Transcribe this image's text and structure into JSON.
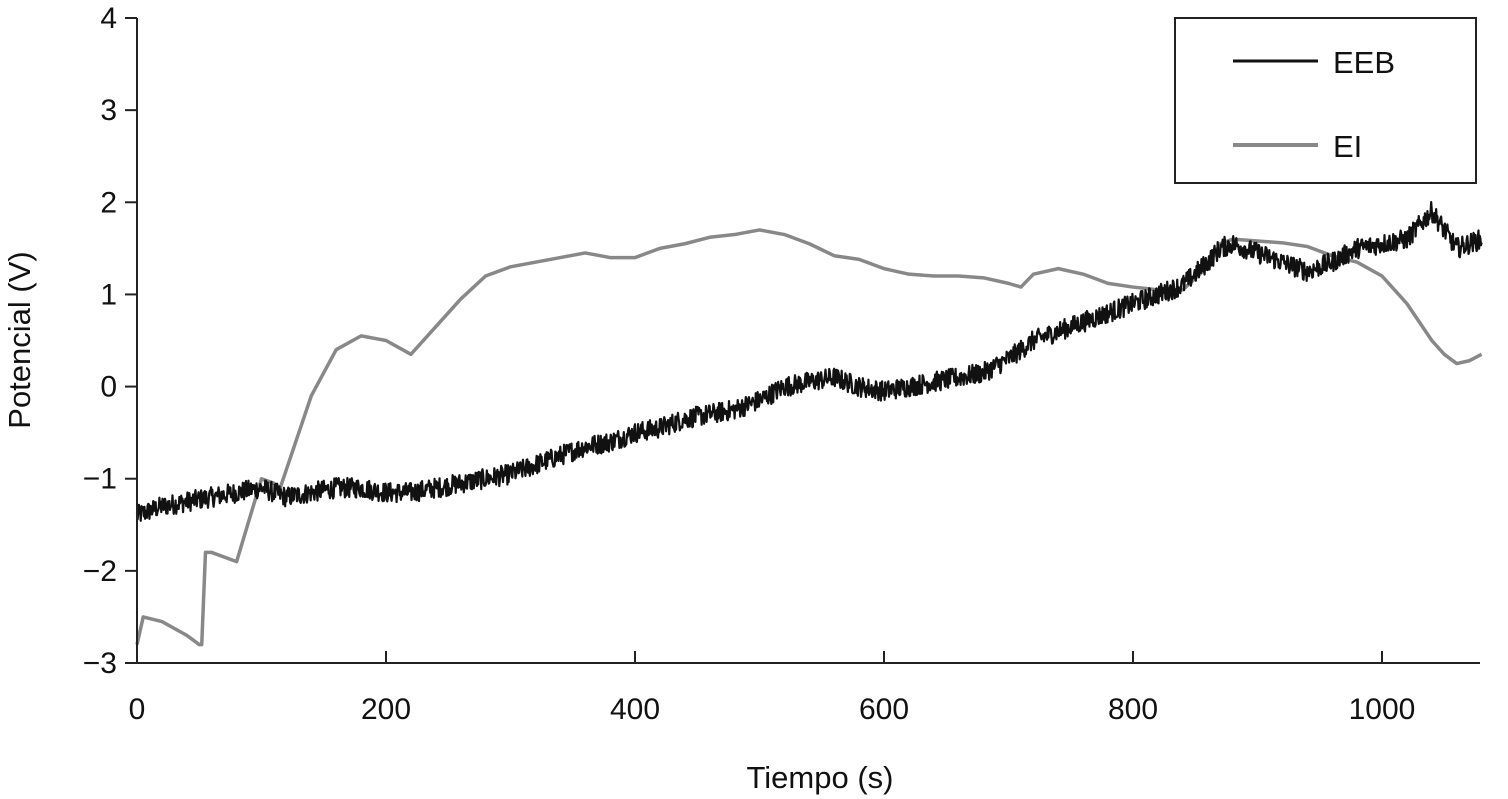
{
  "chart_data": {
    "type": "line",
    "title": "",
    "xlabel": "Tiempo (s)",
    "ylabel": "Potencial (V)",
    "xlim": [
      0,
      1100
    ],
    "ylim": [
      -3,
      4
    ],
    "xticks": [
      0,
      200,
      400,
      600,
      800,
      1000
    ],
    "yticks": [
      -3,
      -2,
      -1,
      0,
      1,
      2,
      3,
      4
    ],
    "xtick_labels": [
      "0",
      "200",
      "400",
      "600",
      "800",
      "1000"
    ],
    "ytick_labels": [
      "−3",
      "−2",
      "−1",
      "0",
      "1",
      "2",
      "3",
      "4"
    ],
    "grid": false,
    "legend_position": "top-right",
    "series": [
      {
        "name": "EEB",
        "color": "#111111",
        "noisy": true,
        "x": [
          0,
          20,
          40,
          60,
          80,
          100,
          120,
          140,
          160,
          180,
          200,
          220,
          240,
          260,
          280,
          300,
          320,
          340,
          360,
          380,
          400,
          420,
          440,
          460,
          480,
          500,
          520,
          540,
          560,
          580,
          600,
          620,
          640,
          660,
          680,
          700,
          720,
          740,
          760,
          780,
          800,
          820,
          840,
          860,
          870,
          880,
          900,
          920,
          940,
          960,
          980,
          1000,
          1020,
          1040,
          1060,
          1080
        ],
        "y": [
          -1.4,
          -1.3,
          -1.25,
          -1.2,
          -1.15,
          -1.1,
          -1.2,
          -1.15,
          -1.1,
          -1.1,
          -1.15,
          -1.15,
          -1.1,
          -1.05,
          -1.0,
          -0.95,
          -0.85,
          -0.75,
          -0.65,
          -0.6,
          -0.5,
          -0.45,
          -0.35,
          -0.3,
          -0.25,
          -0.15,
          0.0,
          0.05,
          0.1,
          0.0,
          -0.05,
          0.0,
          0.05,
          0.1,
          0.15,
          0.3,
          0.5,
          0.6,
          0.7,
          0.8,
          0.9,
          1.0,
          1.1,
          1.35,
          1.5,
          1.55,
          1.45,
          1.35,
          1.25,
          1.35,
          1.5,
          1.55,
          1.6,
          1.9,
          1.5,
          1.6
        ]
      },
      {
        "name": "EI",
        "color": "#888888",
        "noisy": false,
        "x": [
          0,
          5,
          20,
          40,
          50,
          52,
          55,
          60,
          80,
          100,
          110,
          115,
          120,
          140,
          160,
          180,
          200,
          220,
          240,
          260,
          280,
          300,
          320,
          340,
          360,
          380,
          400,
          420,
          440,
          460,
          480,
          500,
          520,
          540,
          560,
          580,
          600,
          620,
          640,
          660,
          680,
          700,
          710,
          720,
          740,
          760,
          780,
          800,
          820,
          840,
          860,
          870,
          880,
          900,
          920,
          940,
          960,
          980,
          1000,
          1020,
          1040,
          1050,
          1060,
          1070,
          1080
        ],
        "y": [
          -2.8,
          -2.5,
          -2.55,
          -2.7,
          -2.8,
          -2.8,
          -1.8,
          -1.8,
          -1.9,
          -1.0,
          -1.05,
          -1.1,
          -0.9,
          -0.1,
          0.4,
          0.55,
          0.5,
          0.35,
          0.65,
          0.95,
          1.2,
          1.3,
          1.35,
          1.4,
          1.45,
          1.4,
          1.4,
          1.5,
          1.55,
          1.62,
          1.65,
          1.7,
          1.65,
          1.55,
          1.42,
          1.38,
          1.28,
          1.22,
          1.2,
          1.2,
          1.18,
          1.12,
          1.08,
          1.22,
          1.28,
          1.22,
          1.12,
          1.08,
          1.05,
          1.05,
          1.3,
          1.55,
          1.6,
          1.58,
          1.56,
          1.52,
          1.42,
          1.35,
          1.2,
          0.9,
          0.5,
          0.35,
          0.25,
          0.28,
          0.35
        ]
      }
    ]
  }
}
